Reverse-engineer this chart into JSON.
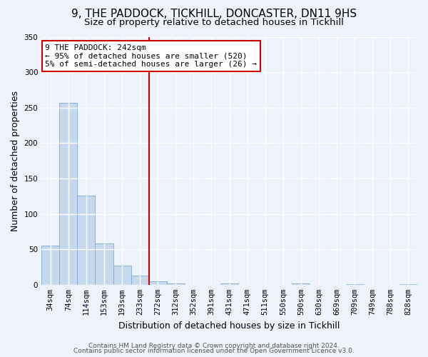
{
  "title": "9, THE PADDOCK, TICKHILL, DONCASTER, DN11 9HS",
  "subtitle": "Size of property relative to detached houses in Tickhill",
  "xlabel": "Distribution of detached houses by size in Tickhill",
  "ylabel": "Number of detached properties",
  "bar_labels": [
    "34sqm",
    "74sqm",
    "114sqm",
    "153sqm",
    "193sqm",
    "233sqm",
    "272sqm",
    "312sqm",
    "352sqm",
    "391sqm",
    "431sqm",
    "471sqm",
    "511sqm",
    "550sqm",
    "590sqm",
    "630sqm",
    "669sqm",
    "709sqm",
    "749sqm",
    "788sqm",
    "828sqm"
  ],
  "bar_values": [
    55,
    257,
    126,
    58,
    27,
    13,
    5,
    2,
    0,
    0,
    2,
    0,
    0,
    0,
    2,
    0,
    0,
    1,
    0,
    0,
    1
  ],
  "bar_color": "#c5d8ec",
  "bar_edge_color": "#7aadd4",
  "ylim": [
    0,
    350
  ],
  "yticks": [
    0,
    50,
    100,
    150,
    200,
    250,
    300,
    350
  ],
  "vline_x": 5.5,
  "vline_color": "#cc0000",
  "annotation_text": "9 THE PADDOCK: 242sqm\n← 95% of detached houses are smaller (520)\n5% of semi-detached houses are larger (26) →",
  "annotation_box_facecolor": "#ffffff",
  "annotation_box_edgecolor": "#cc0000",
  "footer_line1": "Contains HM Land Registry data © Crown copyright and database right 2024.",
  "footer_line2": "Contains public sector information licensed under the Open Government Licence v3.0.",
  "background_color": "#eef2fb",
  "grid_color": "#ffffff",
  "title_fontsize": 11,
  "subtitle_fontsize": 9.5,
  "axis_label_fontsize": 9,
  "tick_fontsize": 7.5,
  "annotation_fontsize": 8,
  "footer_fontsize": 6.5
}
